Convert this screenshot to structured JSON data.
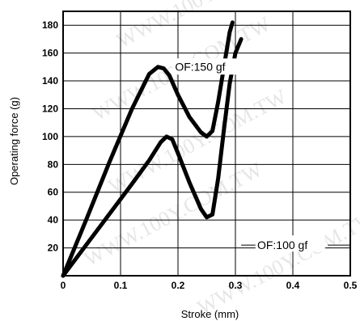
{
  "chart_data": {
    "type": "line",
    "xlabel": "Stroke (mm)",
    "ylabel": "Operating force (g)",
    "xlim": [
      0,
      0.5
    ],
    "ylim": [
      0,
      190
    ],
    "x_ticks": [
      0,
      0.1,
      0.2,
      0.3,
      0.4,
      0.5
    ],
    "x_tick_labels": [
      "0",
      "0.1",
      "0.2",
      "0.3",
      "0.4",
      "0.5"
    ],
    "y_ticks": [
      20,
      40,
      60,
      80,
      100,
      120,
      140,
      160,
      180
    ],
    "y_tick_labels": [
      "20",
      "40",
      "60",
      "80",
      "100",
      "120",
      "140",
      "160",
      "180"
    ],
    "grid": true,
    "series": [
      {
        "name": "OF:150 gf",
        "color": "#000000",
        "x": [
          0,
          0.04,
          0.08,
          0.12,
          0.15,
          0.165,
          0.175,
          0.185,
          0.2,
          0.22,
          0.24,
          0.25,
          0.26,
          0.27,
          0.28,
          0.29,
          0.295
        ],
        "y": [
          0,
          40,
          81,
          120,
          145,
          150,
          149,
          144,
          130,
          114,
          103,
          100,
          104,
          125,
          150,
          175,
          182
        ]
      },
      {
        "name": "OF:100 gf",
        "color": "#000000",
        "x": [
          0,
          0.04,
          0.08,
          0.12,
          0.15,
          0.17,
          0.18,
          0.19,
          0.2,
          0.22,
          0.24,
          0.25,
          0.26,
          0.27,
          0.28,
          0.29,
          0.3,
          0.31
        ],
        "y": [
          0,
          22,
          44,
          66,
          83,
          96,
          100,
          98,
          88,
          67,
          48,
          42,
          44,
          70,
          105,
          138,
          160,
          170
        ]
      }
    ],
    "annotations": [
      {
        "text": "OF:150 gf",
        "series": 0
      },
      {
        "text": "OF:100 gf",
        "series": 1
      }
    ],
    "watermark": "WWW.100Y.COM.TW"
  }
}
